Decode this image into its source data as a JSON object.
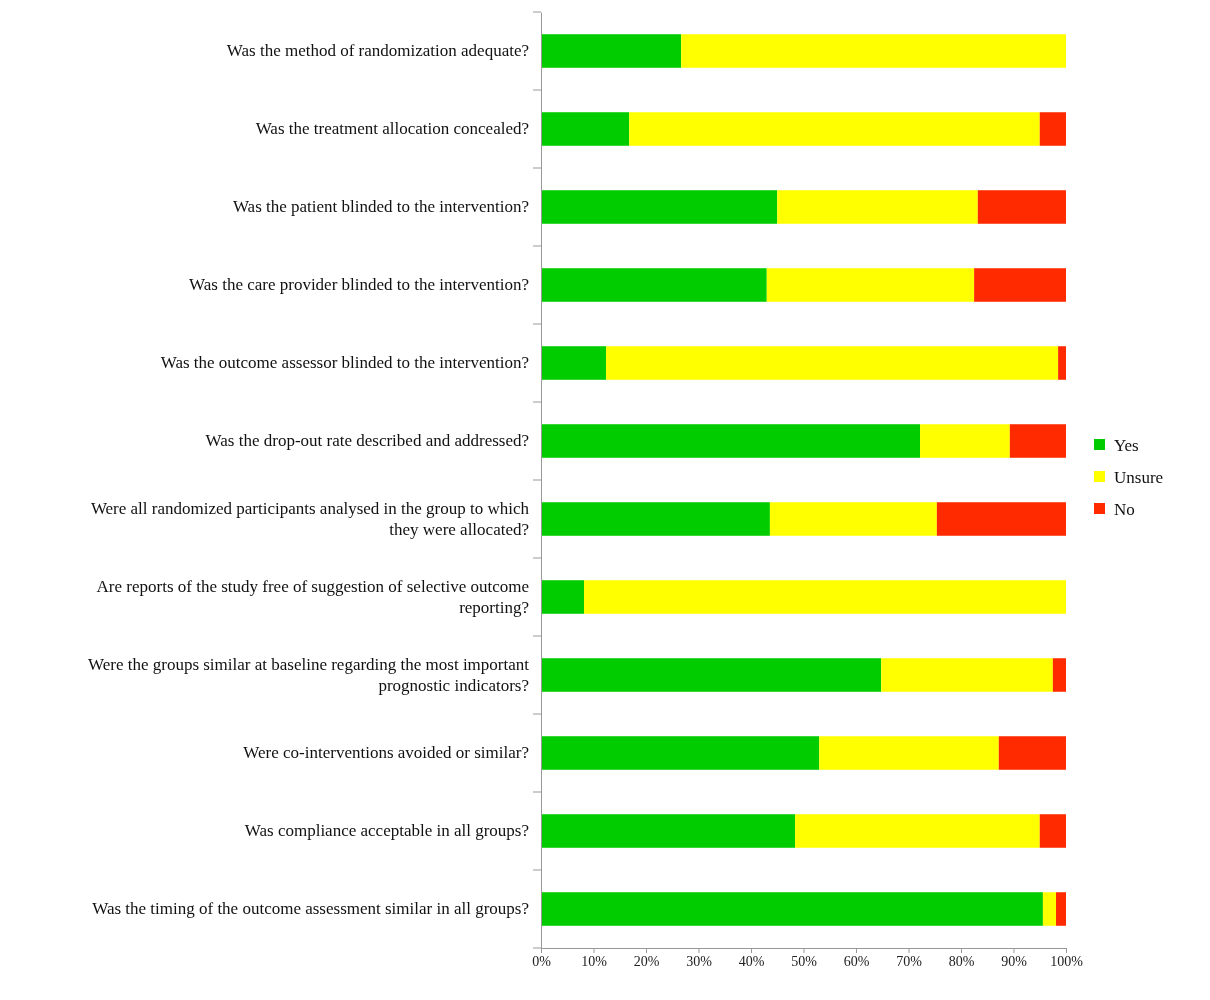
{
  "chart_data": {
    "type": "bar",
    "orientation": "horizontal",
    "stacked": true,
    "categories": [
      "Was the method of randomization adequate?",
      "Was the treatment allocation concealed?",
      "Was the patient blinded to the intervention?",
      "Was the care provider blinded to the intervention?",
      "Was the outcome assessor blinded to the intervention?",
      "Was the drop-out rate described and addressed?",
      "Were all randomized participants analysed in the group to which they were allocated?",
      "Are reports of the study free of suggestion of selective outcome reporting?",
      "Were the groups similar at baseline regarding the most important prognostic indicators?",
      "Were co-interventions avoided or similar?",
      "Was compliance acceptable in all groups?",
      "Was the timing of the outcome assessment similar in all groups?"
    ],
    "series": [
      {
        "name": "Yes",
        "color": "#00cc00",
        "values": [
          26.7,
          16.8,
          45.0,
          43.0,
          12.4,
          72.2,
          43.6,
          8.2,
          64.8,
          53.0,
          48.4,
          95.6
        ]
      },
      {
        "name": "Unsure",
        "color": "#ffff00",
        "values": [
          73.3,
          78.2,
          38.2,
          39.5,
          86.1,
          17.1,
          31.8,
          91.8,
          32.7,
          34.2,
          46.6,
          2.5
        ]
      },
      {
        "name": "No",
        "color": "#ff2a00",
        "values": [
          0,
          5.0,
          16.8,
          17.5,
          1.5,
          10.7,
          24.6,
          0,
          2.5,
          12.8,
          5.0,
          1.9
        ]
      }
    ],
    "xlim": [
      0,
      100
    ],
    "xticks": [
      {
        "value": 0,
        "label": "0%"
      },
      {
        "value": 10,
        "label": "10%"
      },
      {
        "value": 20,
        "label": "20%"
      },
      {
        "value": 30,
        "label": "30%"
      },
      {
        "value": 40,
        "label": "40%"
      },
      {
        "value": 50,
        "label": "50%"
      },
      {
        "value": 60,
        "label": "60%"
      },
      {
        "value": 70,
        "label": "70%"
      },
      {
        "value": 80,
        "label": "80%"
      },
      {
        "value": 90,
        "label": "90%"
      },
      {
        "value": 100,
        "label": "100%"
      }
    ],
    "grid": false,
    "legend": "right"
  }
}
